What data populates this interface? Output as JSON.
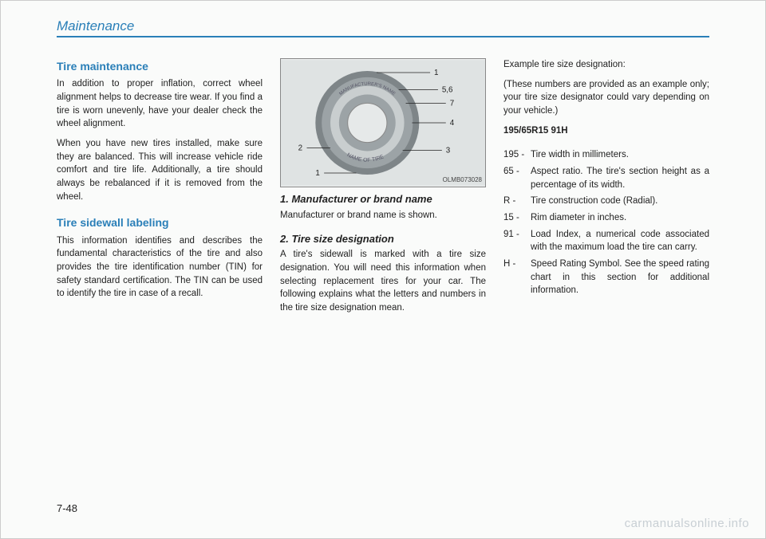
{
  "header": {
    "title": "Maintenance"
  },
  "col1": {
    "h1": "Tire maintenance",
    "p1": "In addition to proper inflation, correct wheel alignment helps to decrease tire wear. If you find a tire is worn unevenly, have your dealer check the wheel alignment.",
    "p2": "When you have new tires installed, make sure they are balanced. This will increase vehicle ride comfort and tire life. Additionally, a tire should always be rebalanced if it is removed from the wheel.",
    "h2": "Tire sidewall labeling",
    "p3": "This information identifies and describes the fundamental characteristics of the tire and also provides the tire identification number (TIN) for safety standard certification. The TIN can be used to identify the tire in case of a recall."
  },
  "figure": {
    "code": "OLMB073028",
    "labels": {
      "l1": "1",
      "l56": "5,6",
      "l7": "7",
      "l4": "4",
      "l3": "3",
      "lb1": "1",
      "l2": "2"
    },
    "top_text": "MANUFACTURER'S NAME",
    "bottom_text": "NAME OF TIRE",
    "colors": {
      "bg": "#dfe3e3",
      "tire_dark": "#7e8588",
      "tire_mid": "#9ca3a6",
      "tire_light": "#c9cecf",
      "hub": "#e6e9e9",
      "line": "#222",
      "label": "#222"
    }
  },
  "col2": {
    "s1_title": "1. Manufacturer or brand name",
    "s1_body": "Manufacturer or brand name is shown.",
    "s2_title": "2. Tire size designation",
    "s2_body": "A tire's sidewall is marked with a tire size designation. You will need this information when selecting replacement tires for your car. The following explains what the letters and numbers in the tire size designation mean."
  },
  "col3": {
    "p1": "Example tire size designation:",
    "p2": "(These numbers are provided as an example only; your tire size designator could vary depending on your vehicle.)",
    "code": "195/65R15 91H",
    "defs": [
      {
        "k": "195 -",
        "v": "Tire width in millimeters."
      },
      {
        "k": "65 -",
        "v": "Aspect ratio. The tire's section height as a percentage of its width."
      },
      {
        "k": "R -",
        "v": "Tire construction code (Radial)."
      },
      {
        "k": "15 -",
        "v": "Rim diameter in inches."
      },
      {
        "k": "91 -",
        "v": "Load Index, a numerical code associated with the maximum load the tire can carry."
      },
      {
        "k": "H -",
        "v": "Speed Rating Symbol. See the speed rating chart in this section for additional information."
      }
    ]
  },
  "page_num": "7-48",
  "watermark": "carmanualsonline.info"
}
